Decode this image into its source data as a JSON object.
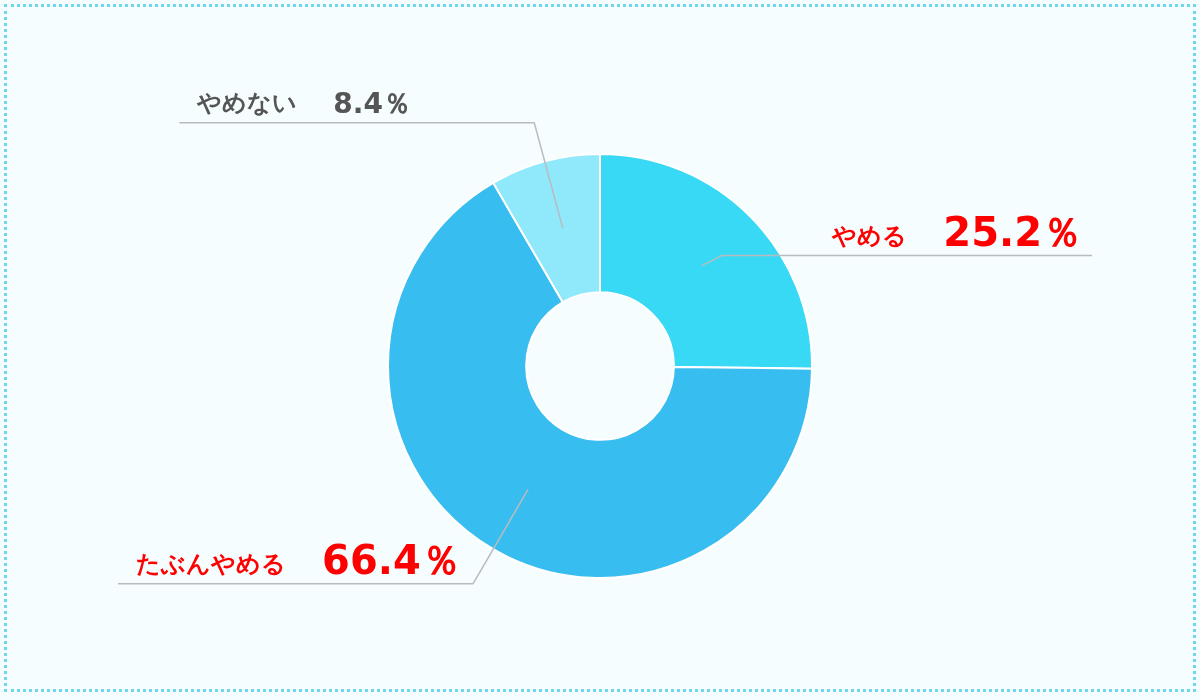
{
  "chart_data": {
    "type": "donut",
    "categories": [
      "やめる",
      "たぶんやめる",
      "やめない"
    ],
    "values": [
      25.2,
      66.4,
      8.4
    ],
    "colors": [
      "#38d9f5",
      "#38bdf0",
      "#90e8fb"
    ],
    "value_labels": [
      "25.2％",
      "66.4％",
      "8.4％"
    ],
    "legend": false
  }
}
